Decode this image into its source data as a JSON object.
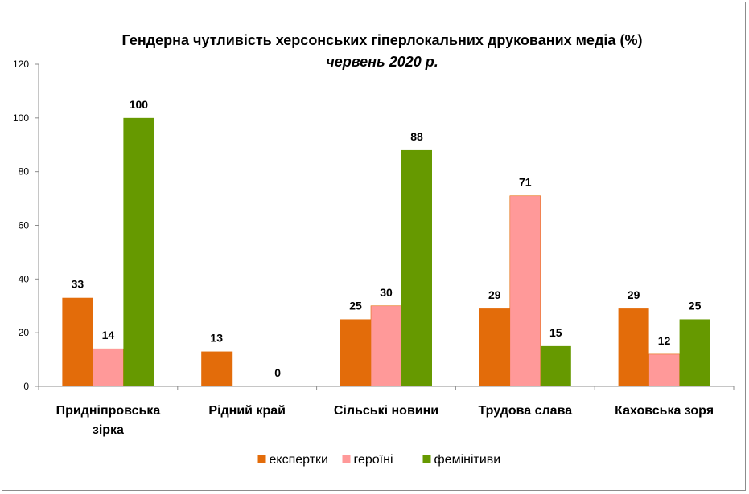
{
  "chart_data": {
    "type": "bar",
    "title": "Гендерна чутливість херсонських гіперлокальних друкованих медіа (%)",
    "subtitle": "червень 2020 р.",
    "categories": [
      [
        "Придніпровська",
        "зірка"
      ],
      [
        "Рідний край"
      ],
      [
        "Сільські новини"
      ],
      [
        "Трудова слава"
      ],
      [
        "Каховська зоря"
      ]
    ],
    "series": [
      {
        "name": "експертки",
        "color": "#e36c0a",
        "values": [
          33,
          13,
          25,
          29,
          29
        ]
      },
      {
        "name": "героїні",
        "color": "#ff9999",
        "values": [
          14,
          null,
          30,
          71,
          12
        ]
      },
      {
        "name": "фемінітиви",
        "color": "#669900",
        "values": [
          100,
          0,
          88,
          15,
          25
        ]
      }
    ],
    "yticks": [
      "0",
      "20",
      "40",
      "60",
      "80",
      "100",
      "120"
    ],
    "ylim": [
      0,
      120
    ],
    "grid": false,
    "legend_position": "bottom"
  }
}
